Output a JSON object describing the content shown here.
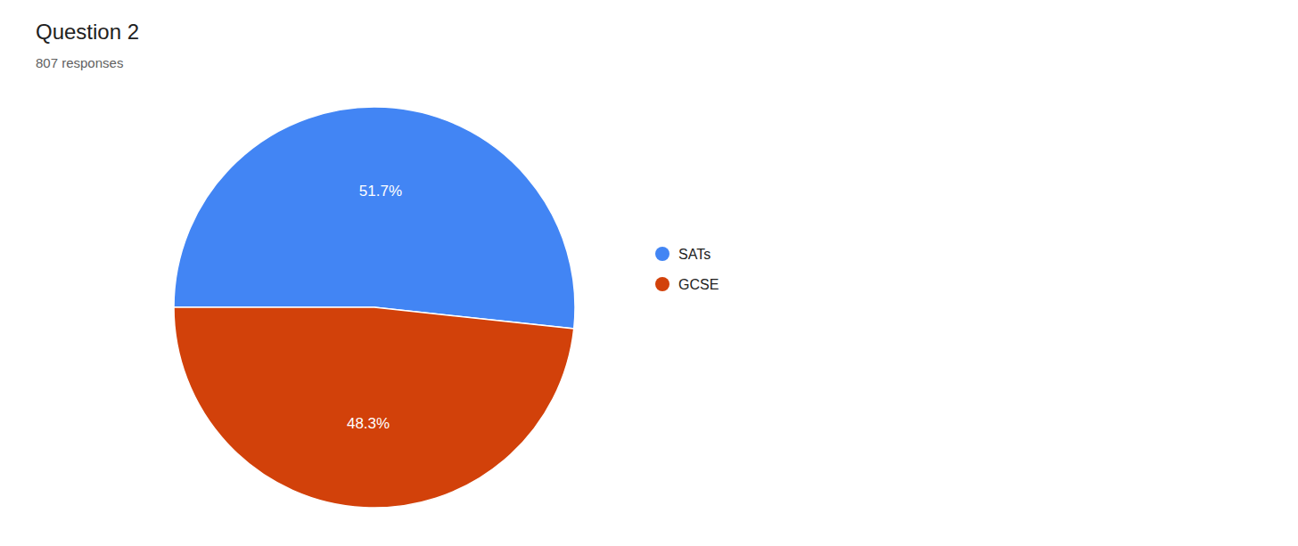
{
  "chart_data": {
    "type": "pie",
    "title": "Question 2",
    "subtitle": "807 responses",
    "categories": [
      "SATs",
      "GCSE"
    ],
    "values": [
      51.7,
      48.3
    ],
    "value_labels": [
      "51.7%",
      "48.3%"
    ],
    "data_labels": true,
    "colors": [
      "#4285F4",
      "#D2410A"
    ],
    "legend": "right"
  }
}
